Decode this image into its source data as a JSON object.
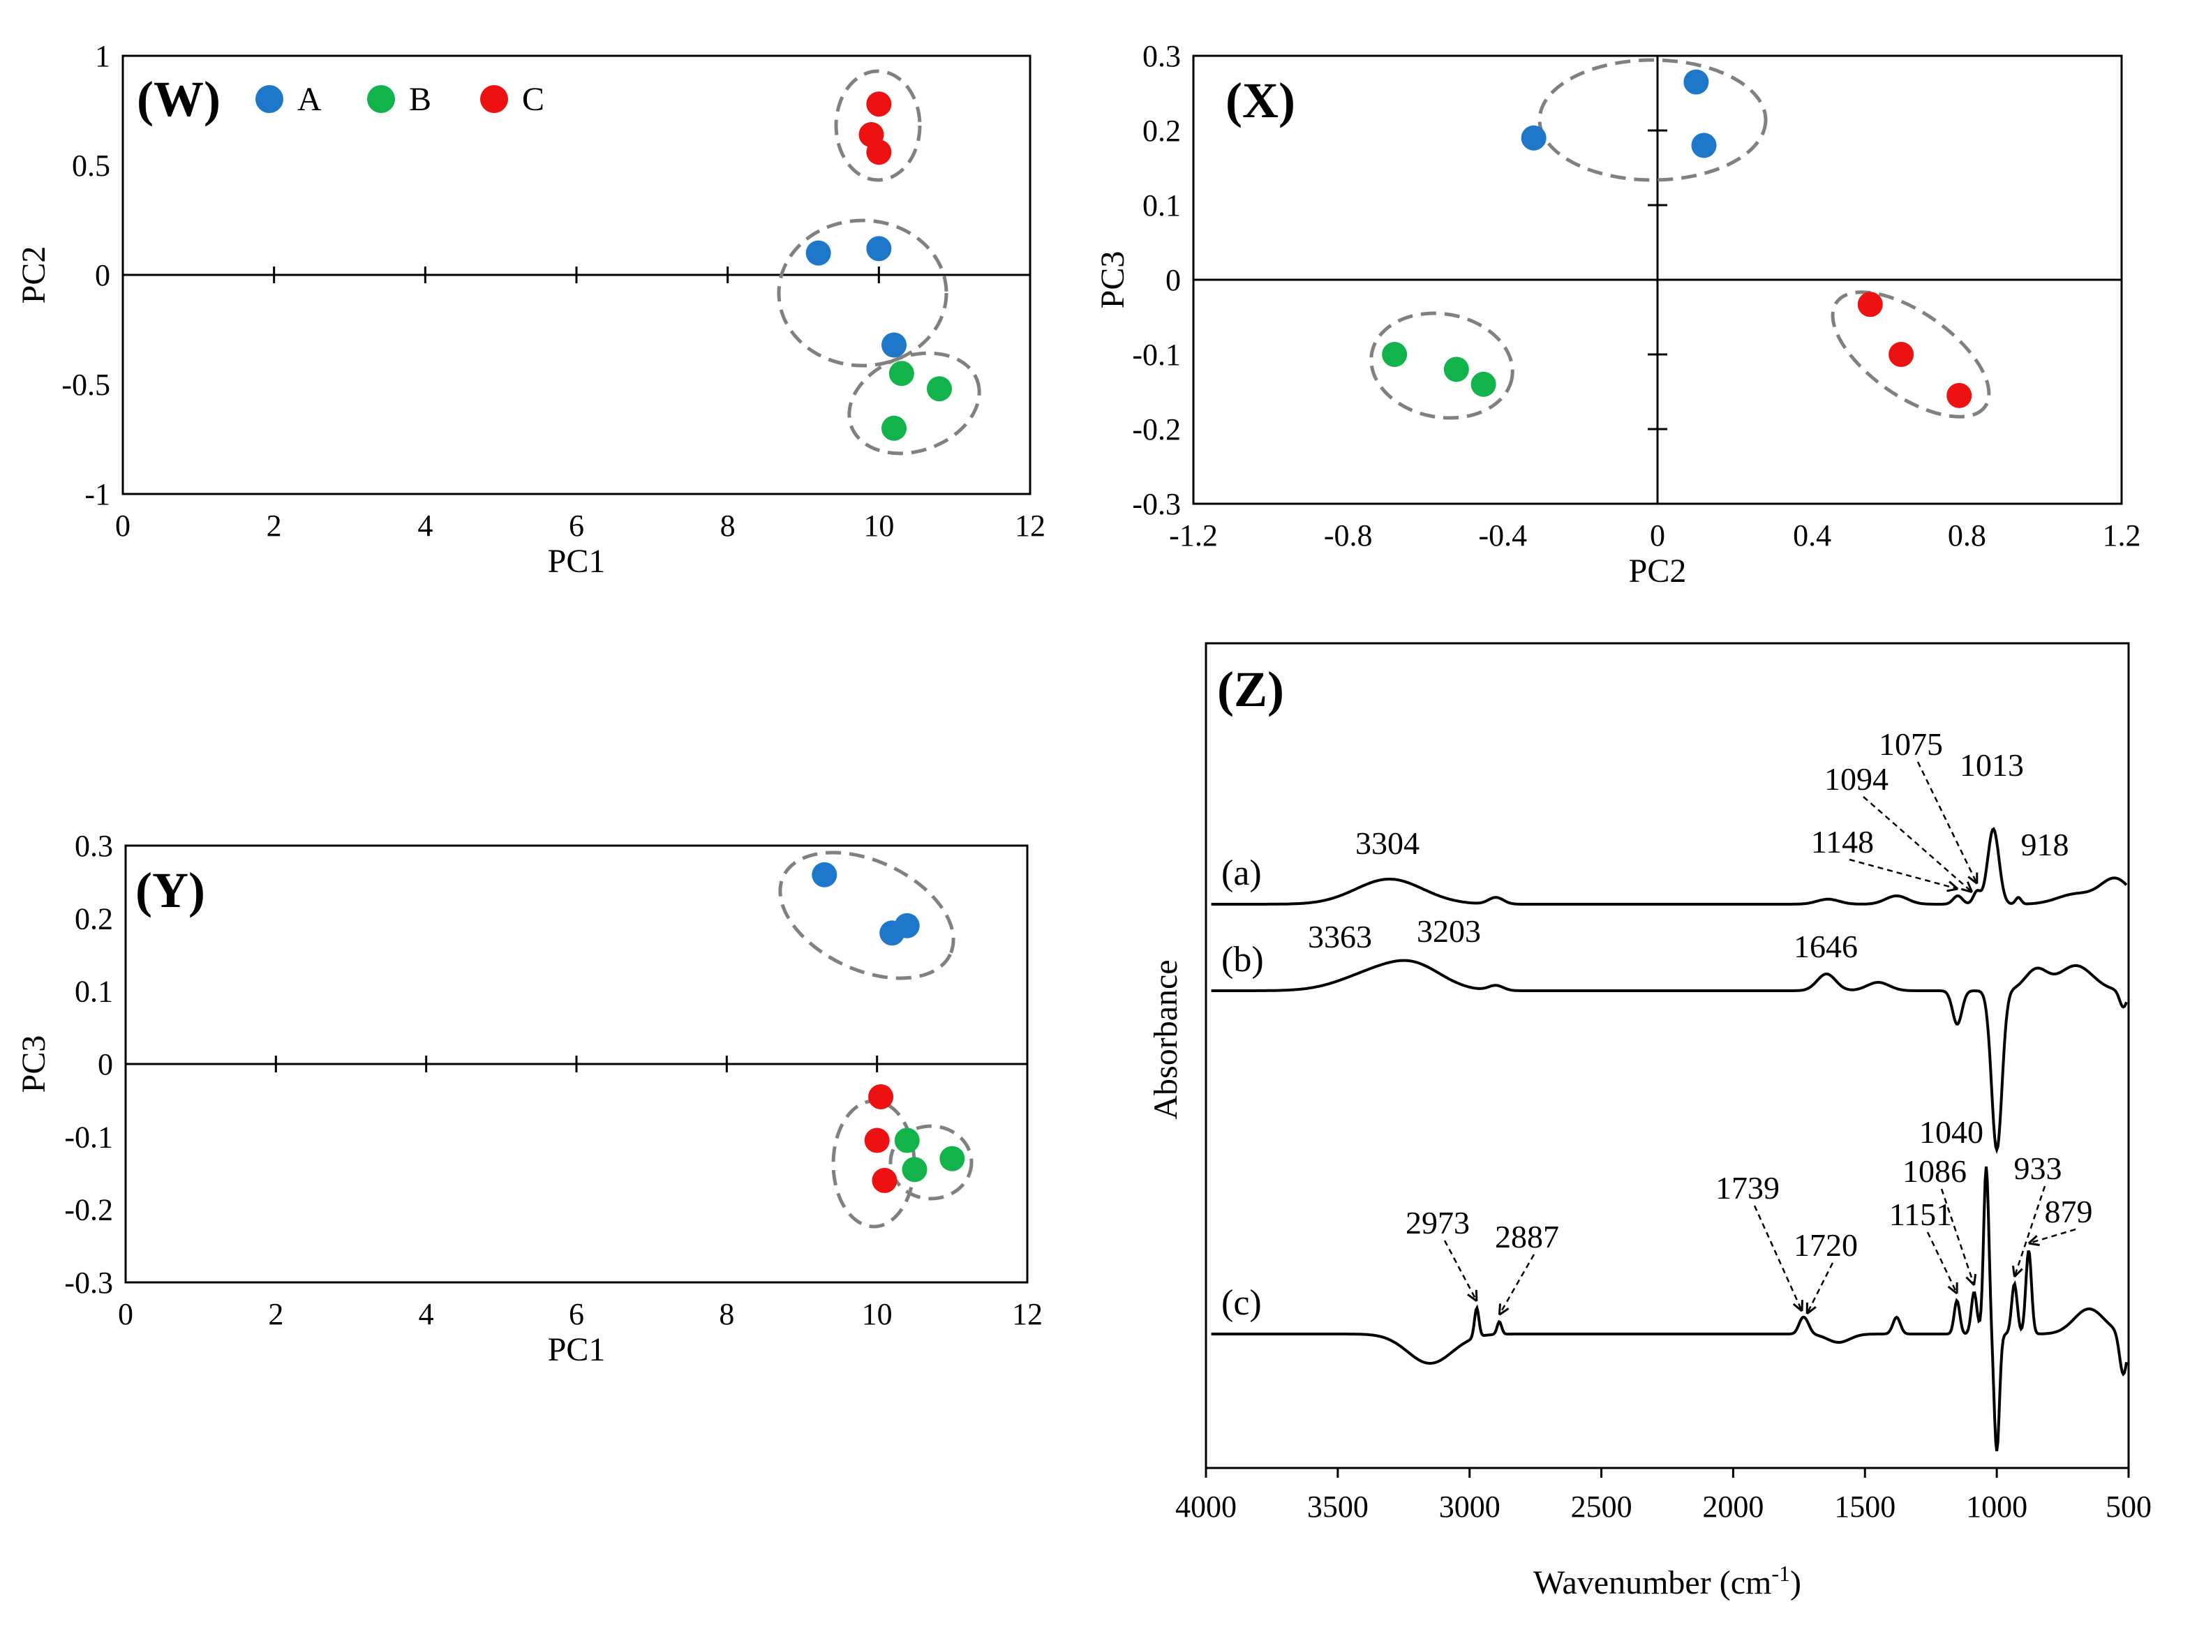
{
  "colors": {
    "A": "#1f77c9",
    "B": "#12b34a",
    "C": "#ee1111",
    "cluster": "#808080",
    "ink": "#000000"
  },
  "legend": [
    {
      "key": "A",
      "label": "A"
    },
    {
      "key": "B",
      "label": "B"
    },
    {
      "key": "C",
      "label": "C"
    }
  ],
  "chart_data": [
    {
      "id": "W",
      "type": "scatter",
      "panel_label": "(W)",
      "xlabel": "PC1",
      "ylabel": "PC2",
      "xlim": [
        0,
        12
      ],
      "ylim": [
        -1,
        1
      ],
      "xticks": [
        0,
        2,
        4,
        6,
        8,
        10,
        12
      ],
      "yticks": [
        1,
        0.5,
        0,
        -0.5,
        -1
      ],
      "series": [
        {
          "name": "A",
          "points": [
            [
              9.2,
              0.1
            ],
            [
              10.0,
              0.12
            ],
            [
              10.2,
              -0.32
            ]
          ]
        },
        {
          "name": "B",
          "points": [
            [
              10.3,
              -0.45
            ],
            [
              10.8,
              -0.52
            ],
            [
              10.2,
              -0.7
            ]
          ]
        },
        {
          "name": "C",
          "points": [
            [
              10.0,
              0.78
            ],
            [
              9.9,
              0.64
            ],
            [
              10.0,
              0.56
            ]
          ]
        }
      ]
    },
    {
      "id": "X",
      "type": "scatter",
      "panel_label": "(X)",
      "xlabel": "PC2",
      "ylabel": "PC3",
      "xlim": [
        -1.2,
        1.2
      ],
      "ylim": [
        -0.3,
        0.3
      ],
      "xticks": [
        -1.2,
        -0.8,
        -0.4,
        0,
        0.4,
        0.8,
        1.2
      ],
      "yticks": [
        0.3,
        0.2,
        0.1,
        0,
        -0.1,
        -0.2,
        -0.3
      ],
      "series": [
        {
          "name": "A",
          "points": [
            [
              -0.32,
              0.19
            ],
            [
              0.1,
              0.265
            ],
            [
              0.12,
              0.18
            ]
          ]
        },
        {
          "name": "B",
          "points": [
            [
              -0.68,
              -0.1
            ],
            [
              -0.52,
              -0.12
            ],
            [
              -0.45,
              -0.14
            ]
          ]
        },
        {
          "name": "C",
          "points": [
            [
              0.55,
              -0.033
            ],
            [
              0.63,
              -0.1
            ],
            [
              0.78,
              -0.155
            ]
          ]
        }
      ]
    },
    {
      "id": "Y",
      "type": "scatter",
      "panel_label": "(Y)",
      "xlabel": "PC1",
      "ylabel": "PC3",
      "xlim": [
        0,
        12
      ],
      "ylim": [
        -0.3,
        0.3
      ],
      "xticks": [
        0,
        2,
        4,
        6,
        8,
        10,
        12
      ],
      "yticks": [
        0.3,
        0.2,
        0.1,
        0,
        -0.1,
        -0.2,
        -0.3
      ],
      "series": [
        {
          "name": "A",
          "points": [
            [
              9.3,
              0.26
            ],
            [
              10.2,
              0.18
            ],
            [
              10.4,
              0.19
            ]
          ]
        },
        {
          "name": "B",
          "points": [
            [
              10.4,
              -0.105
            ],
            [
              10.5,
              -0.145
            ],
            [
              11.0,
              -0.13
            ]
          ]
        },
        {
          "name": "C",
          "points": [
            [
              10.05,
              -0.045
            ],
            [
              10.0,
              -0.105
            ],
            [
              10.1,
              -0.16
            ]
          ]
        }
      ]
    },
    {
      "id": "Z",
      "type": "line",
      "panel_label": "(Z)",
      "xlabel": "Wavenumber (cm",
      "xlabel_sup": "-1",
      "xlabel_end": ")",
      "ylabel": "Absorbance",
      "xlim": [
        4000,
        500
      ],
      "xreversed": true,
      "xticks": [
        4000,
        3500,
        3000,
        2500,
        2000,
        1500,
        1000,
        500
      ],
      "series": [
        {
          "name": "(a)",
          "label": "(a)",
          "offset": 0.8,
          "features": [
            [
              3304,
              0.3,
              180
            ],
            [
              2900,
              0.08,
              40
            ],
            [
              1640,
              0.06,
              60
            ],
            [
              1380,
              0.1,
              60
            ],
            [
              1148,
              0.1,
              25
            ],
            [
              1075,
              0.15,
              20
            ],
            [
              1013,
              0.9,
              30
            ],
            [
              918,
              0.08,
              15
            ],
            [
              700,
              0.12,
              100
            ],
            [
              550,
              0.3,
              80
            ]
          ],
          "annotations": [
            {
              "text": "3304",
              "wn": 3304
            },
            {
              "text": "1148",
              "wn": 1148,
              "arrow": true
            },
            {
              "text": "1094",
              "wn": 1094,
              "arrow": true
            },
            {
              "text": "1075",
              "wn": 1075,
              "arrow": true
            },
            {
              "text": "1013",
              "wn": 1013
            },
            {
              "text": "918",
              "wn": 918
            }
          ]
        },
        {
          "name": "(b)",
          "label": "(b)",
          "offset": 0.55,
          "features": [
            [
              3363,
              0.2,
              180
            ],
            [
              3203,
              0.25,
              150
            ],
            [
              2900,
              0.06,
              40
            ],
            [
              1646,
              0.2,
              50
            ],
            [
              1450,
              0.1,
              60
            ],
            [
              1150,
              -0.4,
              25
            ],
            [
              1000,
              -1.9,
              28
            ],
            [
              850,
              0.25,
              60
            ],
            [
              700,
              0.3,
              90
            ],
            [
              520,
              -0.2,
              20
            ]
          ],
          "annotations": [
            {
              "text": "3363",
              "wn": 3363
            },
            {
              "text": "3203",
              "wn": 3203
            },
            {
              "text": "1646",
              "wn": 1646
            }
          ]
        },
        {
          "name": "(c)",
          "label": "(c)",
          "offset": -0.05,
          "features": [
            [
              3150,
              -0.35,
              120
            ],
            [
              2973,
              0.35,
              12
            ],
            [
              2887,
              0.15,
              12
            ],
            [
              1739,
              0.15,
              20
            ],
            [
              1720,
              0.1,
              20
            ],
            [
              1600,
              -0.1,
              60
            ],
            [
              1380,
              0.2,
              20
            ],
            [
              1151,
              0.4,
              15
            ],
            [
              1086,
              0.5,
              15
            ],
            [
              1040,
              2.0,
              14
            ],
            [
              1000,
              -1.4,
              14
            ],
            [
              933,
              0.6,
              15
            ],
            [
              879,
              1.0,
              15
            ],
            [
              650,
              0.3,
              80
            ],
            [
              520,
              -0.5,
              20
            ]
          ],
          "annotations": [
            {
              "text": "2973",
              "wn": 2973,
              "arrow": true
            },
            {
              "text": "2887",
              "wn": 2887,
              "arrow": true
            },
            {
              "text": "1739",
              "wn": 1739,
              "arrow": true
            },
            {
              "text": "1720",
              "wn": 1720,
              "arrow": true
            },
            {
              "text": "1151",
              "wn": 1151,
              "arrow": true
            },
            {
              "text": "1086",
              "wn": 1086,
              "arrow": true
            },
            {
              "text": "1040",
              "wn": 1040
            },
            {
              "text": "933",
              "wn": 933,
              "arrow": true
            },
            {
              "text": "879",
              "wn": 879,
              "arrow": true
            }
          ]
        }
      ]
    }
  ]
}
